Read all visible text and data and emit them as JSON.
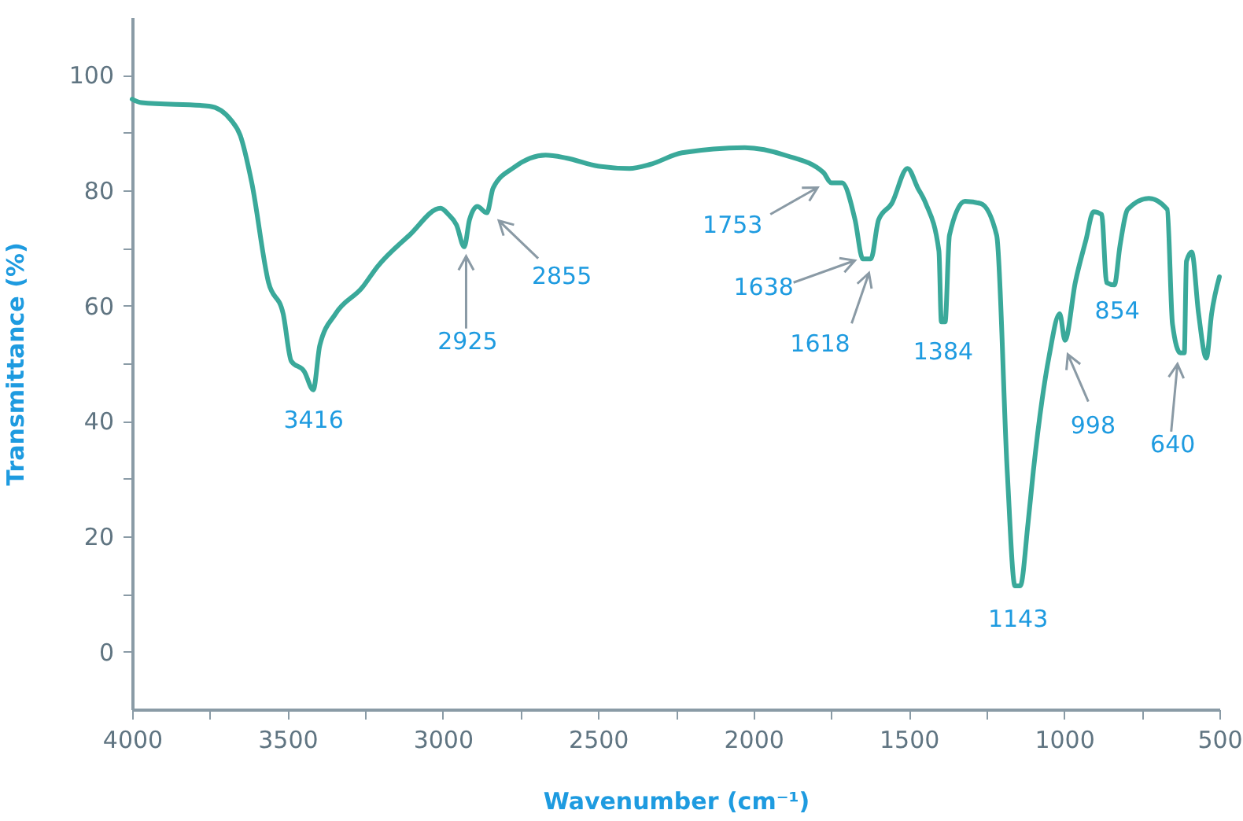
{
  "chart_data": {
    "type": "line",
    "xlabel": "Wavenumber (cm⁻¹)",
    "ylabel": "Transmittance (%)",
    "xlim": [
      4000,
      500
    ],
    "ylim": [
      -10,
      110
    ],
    "xticks": [
      4000,
      {
        "value": 3750,
        "label": null
      },
      3500,
      {
        "value": 3250,
        "label": null
      },
      3000,
      {
        "value": 2750,
        "label": null
      },
      2500,
      {
        "value": 2250,
        "label": null
      },
      2000,
      {
        "value": 1750,
        "label": null
      },
      1500,
      {
        "value": 1250,
        "label": null
      },
      1000,
      {
        "value": 750,
        "label": null
      },
      500
    ],
    "yticks": [
      0,
      {
        "value": 10,
        "label": null
      },
      20,
      {
        "value": 30,
        "label": null
      },
      40,
      {
        "value": 50,
        "label": null
      },
      60,
      {
        "value": 70,
        "label": null
      },
      80,
      {
        "value": 90,
        "label": null
      },
      100
    ],
    "grid": false,
    "marker": "none",
    "line_style": "solid",
    "series": [
      {
        "color": "#3aa99a",
        "x": [
          4000,
          3970,
          3752,
          3682,
          3652,
          3615,
          3561,
          3514,
          3488,
          3446,
          3417,
          3396,
          3345,
          3260,
          3210,
          3108,
          3007,
          2982,
          2956,
          2931,
          2914,
          2889,
          2858,
          2838,
          2770,
          2669,
          2602,
          2500,
          2399,
          2332,
          2230,
          2028,
          1893,
          1775,
          1749,
          1715,
          1673,
          1648,
          1622,
          1597,
          1555,
          1504,
          1471,
          1445,
          1403,
          1395,
          1383,
          1369,
          1319,
          1268,
          1217,
          1183,
          1158,
          1141,
          1116,
          1099,
          1048,
          1014,
          997,
          964,
          930,
          905,
          879,
          863,
          838,
          820,
          795,
          727,
          668,
          651,
          626,
          613,
          606,
          589,
          567,
          542,
          525,
          500
        ],
        "values": [
          95.8,
          95.2,
          94.6,
          92.2,
          89.5,
          81.3,
          64.0,
          58.6,
          50.4,
          48.6,
          45.4,
          53.1,
          58.6,
          63.1,
          66.8,
          72.2,
          76.9,
          75.8,
          74.0,
          70.2,
          74.9,
          77.2,
          76.1,
          80.4,
          84.0,
          86.1,
          85.6,
          84.2,
          83.8,
          84.5,
          86.5,
          87.4,
          86.0,
          83.1,
          81.3,
          81.3,
          74.9,
          68.1,
          68.1,
          74.9,
          77.7,
          83.8,
          80.4,
          77.7,
          69.5,
          57.2,
          57.2,
          72.2,
          78.1,
          77.7,
          72.2,
          31.3,
          11.4,
          11.4,
          22.3,
          31.3,
          51.3,
          58.6,
          54.0,
          64.0,
          71.3,
          76.3,
          75.8,
          64.0,
          63.6,
          70.4,
          76.7,
          78.6,
          76.7,
          56.8,
          51.8,
          51.8,
          67.7,
          69.3,
          58.6,
          50.9,
          58.6,
          65.0
        ]
      }
    ],
    "annotations": [
      {
        "text": "3416",
        "x": 3416,
        "y": 45.4
      },
      {
        "text": "2925",
        "x": 2925,
        "y": 70.2
      },
      {
        "text": "2855",
        "x": 2855,
        "y": 76.1
      },
      {
        "text": "1753",
        "x": 1753,
        "y": 81.3
      },
      {
        "text": "1638",
        "x": 1638,
        "y": 68.1
      },
      {
        "text": "1618",
        "x": 1618,
        "y": 68.1
      },
      {
        "text": "1384",
        "x": 1384,
        "y": 57.2
      },
      {
        "text": "1143",
        "x": 1143,
        "y": 11.4
      },
      {
        "text": "998",
        "x": 998,
        "y": 54.0
      },
      {
        "text": "854",
        "x": 854,
        "y": 64.0
      },
      {
        "text": "640",
        "x": 640,
        "y": 51.8
      }
    ]
  }
}
